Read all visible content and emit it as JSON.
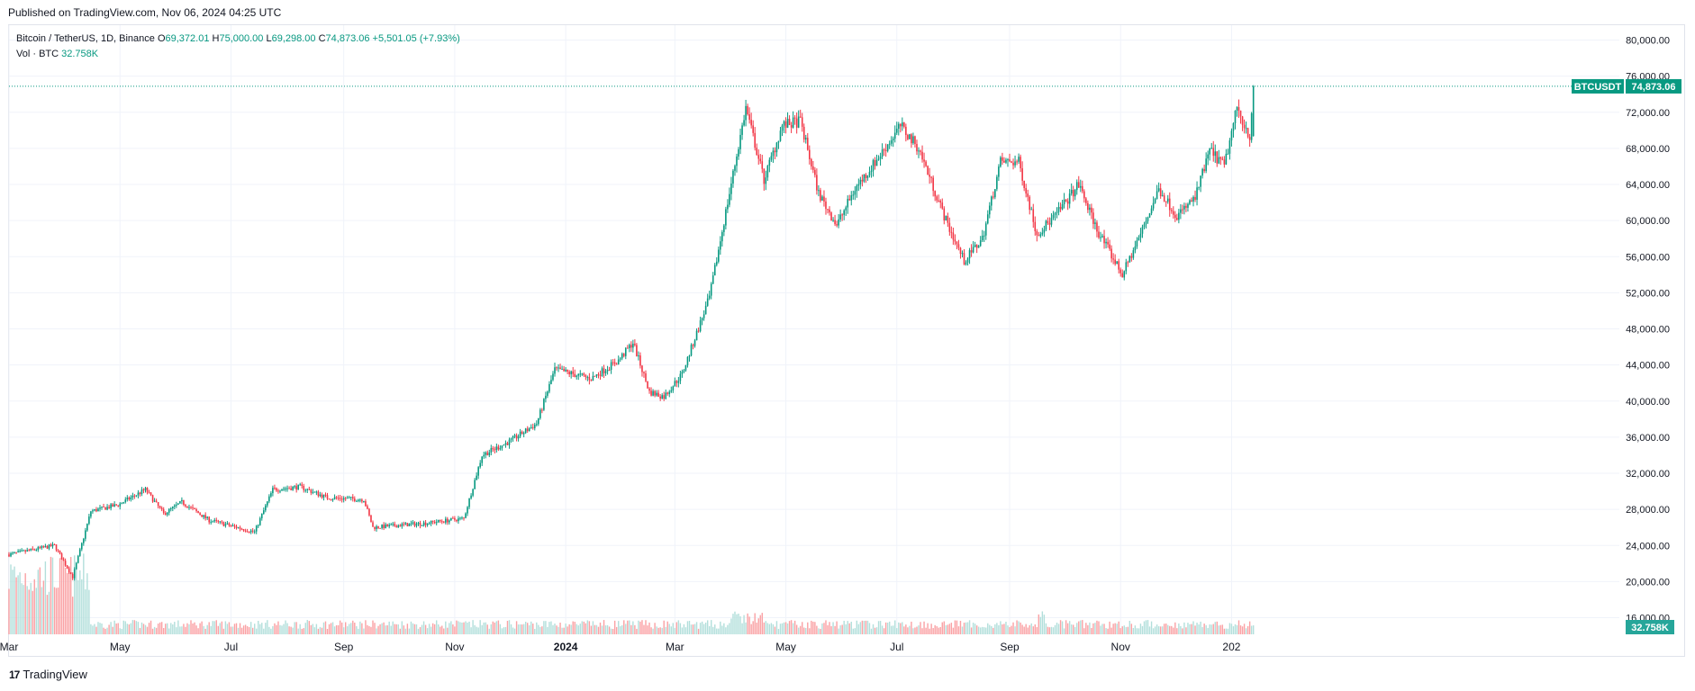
{
  "header": {
    "published": "Published on TradingView.com, Nov 06, 2024 04:25 UTC"
  },
  "legend": {
    "symbol": "Bitcoin / TetherUS, 1D, Binance",
    "open_label": "O",
    "open": "69,372.01",
    "high_label": "H",
    "high": "75,000.00",
    "low_label": "L",
    "low": "69,298.00",
    "close_label": "C",
    "close": "74,873.06",
    "change": "+5,501.05 (+7.93%)",
    "volume_label": "Vol · BTC",
    "volume": "32.758K"
  },
  "price_tag": {
    "symbol": "BTCUSDT",
    "price": "74,873.06"
  },
  "volume_tag": "32.758K",
  "footer": {
    "logo_mark": "17",
    "brand": "TradingView"
  },
  "colors": {
    "up": "#089981",
    "down": "#f23645",
    "up_volume": "#b2dfdb",
    "down_volume": "#faa1a4",
    "grid": "#f0f3fa"
  },
  "chart_data": {
    "type": "candlestick",
    "series": [
      {
        "name": "BTCUSDT",
        "type": "candlestick"
      },
      {
        "name": "Vol · BTC",
        "type": "volume"
      }
    ],
    "y_ticks": [
      "80,000.00",
      "76,000.00",
      "72,000.00",
      "68,000.00",
      "64,000.00",
      "60,000.00",
      "56,000.00",
      "52,000.00",
      "48,000.00",
      "44,000.00",
      "40,000.00",
      "36,000.00",
      "32,000.00",
      "28,000.00",
      "24,000.00",
      "20,000.00",
      "16,000.00"
    ],
    "y_tick_values": [
      80000,
      76000,
      72000,
      68000,
      64000,
      60000,
      56000,
      52000,
      48000,
      44000,
      40000,
      36000,
      32000,
      28000,
      24000,
      20000,
      16000
    ],
    "x_ticks": [
      "Mar",
      "May",
      "Jul",
      "Sep",
      "Nov",
      "2024",
      "Mar",
      "May",
      "Jul",
      "Sep",
      "Nov",
      "202"
    ],
    "x_tick_days": [
      0,
      61,
      122,
      184,
      245,
      306,
      366,
      427,
      488,
      550,
      611,
      672
    ],
    "ylim": [
      16000,
      80000
    ],
    "x_start": "2023-02-03",
    "x_end": "2024-12-26",
    "last_close": 74873.06,
    "anchors": [
      {
        "day": 0,
        "close": 23000
      },
      {
        "day": 25,
        "close": 24000
      },
      {
        "day": 35,
        "close": 20500
      },
      {
        "day": 45,
        "close": 27800
      },
      {
        "day": 60,
        "close": 28500
      },
      {
        "day": 75,
        "close": 30200
      },
      {
        "day": 85,
        "close": 27500
      },
      {
        "day": 95,
        "close": 28800
      },
      {
        "day": 110,
        "close": 26800
      },
      {
        "day": 135,
        "close": 25500
      },
      {
        "day": 145,
        "close": 30200
      },
      {
        "day": 160,
        "close": 30500
      },
      {
        "day": 175,
        "close": 29300
      },
      {
        "day": 195,
        "close": 29100
      },
      {
        "day": 200,
        "close": 26000
      },
      {
        "day": 230,
        "close": 26500
      },
      {
        "day": 250,
        "close": 27000
      },
      {
        "day": 260,
        "close": 34000
      },
      {
        "day": 275,
        "close": 35500
      },
      {
        "day": 290,
        "close": 37500
      },
      {
        "day": 300,
        "close": 43500
      },
      {
        "day": 320,
        "close": 42500
      },
      {
        "day": 335,
        "close": 44500
      },
      {
        "day": 343,
        "close": 46500
      },
      {
        "day": 352,
        "close": 41000
      },
      {
        "day": 360,
        "close": 40500
      },
      {
        "day": 370,
        "close": 43000
      },
      {
        "day": 385,
        "close": 51500
      },
      {
        "day": 395,
        "close": 62000
      },
      {
        "day": 405,
        "close": 72500
      },
      {
        "day": 415,
        "close": 64500
      },
      {
        "day": 425,
        "close": 70500
      },
      {
        "day": 435,
        "close": 71000
      },
      {
        "day": 445,
        "close": 63000
      },
      {
        "day": 455,
        "close": 59500
      },
      {
        "day": 465,
        "close": 63500
      },
      {
        "day": 478,
        "close": 67000
      },
      {
        "day": 490,
        "close": 70500
      },
      {
        "day": 500,
        "close": 68000
      },
      {
        "day": 515,
        "close": 60000
      },
      {
        "day": 525,
        "close": 55500
      },
      {
        "day": 535,
        "close": 58000
      },
      {
        "day": 545,
        "close": 66500
      },
      {
        "day": 555,
        "close": 66500
      },
      {
        "day": 565,
        "close": 58500
      },
      {
        "day": 575,
        "close": 60500
      },
      {
        "day": 588,
        "close": 64000
      },
      {
        "day": 598,
        "close": 59000
      },
      {
        "day": 612,
        "close": 54000
      },
      {
        "day": 622,
        "close": 58500
      },
      {
        "day": 632,
        "close": 63500
      },
      {
        "day": 642,
        "close": 60500
      },
      {
        "day": 652,
        "close": 62500
      },
      {
        "day": 660,
        "close": 67800
      },
      {
        "day": 668,
        "close": 66000
      },
      {
        "day": 675,
        "close": 72500
      },
      {
        "day": 682,
        "close": 69300
      },
      {
        "day": 684,
        "close": 74873
      }
    ]
  }
}
